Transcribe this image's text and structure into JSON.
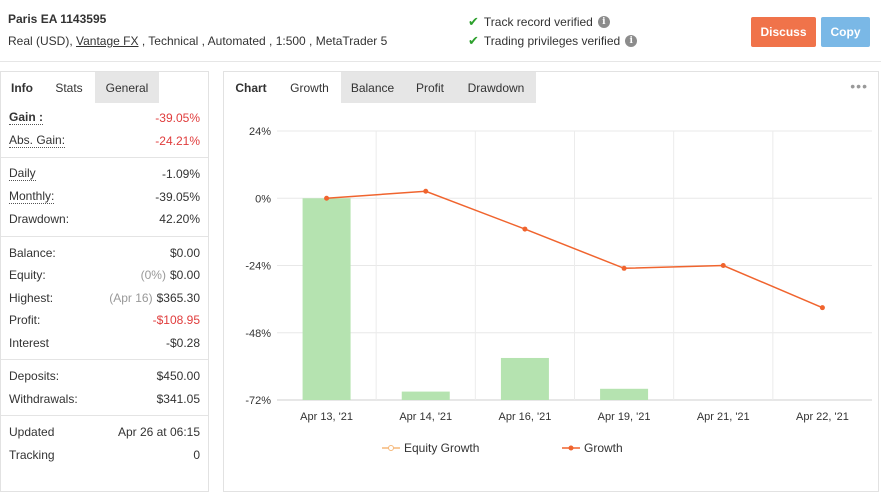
{
  "header": {
    "system_name": "Paris EA 1143595",
    "meta_prefix": "Real (USD), ",
    "broker": "Vantage FX",
    "meta_suffix": " , Technical , Automated , 1:500 , MetaTrader 5",
    "verify_track": "Track record verified",
    "verify_trading": "Trading privileges verified",
    "discuss_label": "Discuss",
    "copy_label": "Copy"
  },
  "left_tabs": {
    "info": "Info",
    "stats": "Stats",
    "general": "General"
  },
  "stats": {
    "gain_label": "Gain :",
    "gain_value": "-39.05%",
    "abs_gain_label": "Abs. Gain:",
    "abs_gain_value": "-24.21%",
    "daily_label": "Daily",
    "daily_value": "-1.09%",
    "monthly_label": "Monthly:",
    "monthly_value": "-39.05%",
    "drawdown_label": "Drawdown:",
    "drawdown_value": "42.20%",
    "balance_label": "Balance:",
    "balance_value": "$0.00",
    "equity_label": "Equity:",
    "equity_sub": "(0%)",
    "equity_value": "$0.00",
    "highest_label": "Highest:",
    "highest_sub": "(Apr 16)",
    "highest_value": "$365.30",
    "profit_label": "Profit:",
    "profit_value": "-$108.95",
    "interest_label": "Interest",
    "interest_value": "-$0.28",
    "deposits_label": "Deposits:",
    "deposits_value": "$450.00",
    "withdrawals_label": "Withdrawals:",
    "withdrawals_value": "$341.05",
    "updated_label": "Updated",
    "updated_value": "Apr 26 at 06:15",
    "tracking_label": "Tracking",
    "tracking_value": "0"
  },
  "right_tabs": {
    "chart": "Chart",
    "growth": "Growth",
    "balance": "Balance",
    "profit": "Profit",
    "drawdown": "Drawdown"
  },
  "colors": {
    "growth_line": "#f0642e",
    "bar_fill": "#b5e3b0",
    "accent_orange": "#f0734a",
    "accent_blue": "#7ab8e6",
    "negative": "#e03c3c"
  },
  "chart_data": {
    "type": "line",
    "categories": [
      "Apr 13, '21",
      "Apr 14, '21",
      "Apr 16, '21",
      "Apr 19, '21",
      "Apr 21, '21",
      "Apr 22, '21"
    ],
    "series": [
      {
        "name": "Equity Growth",
        "type": "bar",
        "values": [
          0,
          -69,
          -57,
          -68,
          -72,
          -72
        ]
      },
      {
        "name": "Growth",
        "type": "line",
        "values": [
          0,
          2.5,
          -11,
          -25,
          -24,
          -39.05
        ]
      }
    ],
    "yticks": [
      "24%",
      "0%",
      "-24%",
      "-48%",
      "-72%"
    ],
    "ylim": [
      -72,
      24
    ],
    "grid": true,
    "legend": "bottom"
  }
}
